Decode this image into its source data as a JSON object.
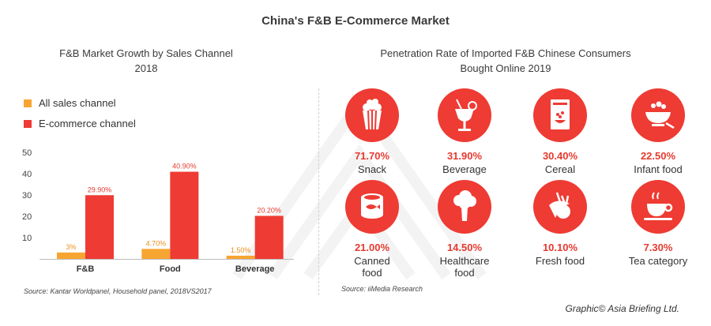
{
  "page_title": "China's F&B E-Commerce Market",
  "left_title": "F&B Market Growth by Sales Channel 2018",
  "right_title": "Penetration Rate of Imported F&B Chinese Consumers Bought Online 2019",
  "left_source": "Source: Kantar Worldpanel, Household panel, 2018VS2017",
  "right_source": "Source: iiMedia Research",
  "credit": "Graphic© Asia Briefing Ltd.",
  "colors": {
    "orange": "#f7a532",
    "red": "#ee3b33",
    "title": "#3a3a3a"
  },
  "chart_data": {
    "type": "bar",
    "categories": [
      "F&B",
      "Food",
      "Beverage"
    ],
    "series": [
      {
        "name": "All sales channel",
        "values": [
          3.0,
          4.7,
          1.5
        ],
        "labels": [
          "3%",
          "4.70%",
          "1.50%"
        ]
      },
      {
        "name": "E-commerce channel",
        "values": [
          29.9,
          40.9,
          20.2
        ],
        "labels": [
          "29.90%",
          "40.90%",
          "20.20%"
        ]
      }
    ],
    "yticks": [
      10,
      20,
      30,
      40,
      50
    ],
    "ylim": [
      0,
      50
    ],
    "legend": "top-left"
  },
  "penetration": [
    {
      "percent": "71.70%",
      "category": "Snack",
      "icon": "popcorn-icon"
    },
    {
      "percent": "31.90%",
      "category": "Beverage",
      "icon": "cocktail-icon"
    },
    {
      "percent": "30.40%",
      "category": "Cereal",
      "icon": "cereal-box-icon"
    },
    {
      "percent": "22.50%",
      "category": "Infant food",
      "icon": "baby-bowl-icon"
    },
    {
      "percent": "21.00%",
      "category": "Canned food",
      "icon": "canned-fish-icon"
    },
    {
      "percent": "14.50%",
      "category": "Healthcare food",
      "icon": "broccoli-icon"
    },
    {
      "percent": "10.10%",
      "category": "Fresh food",
      "icon": "vegetables-icon"
    },
    {
      "percent": "7.30%",
      "category": "Tea category",
      "icon": "teacup-icon"
    }
  ]
}
